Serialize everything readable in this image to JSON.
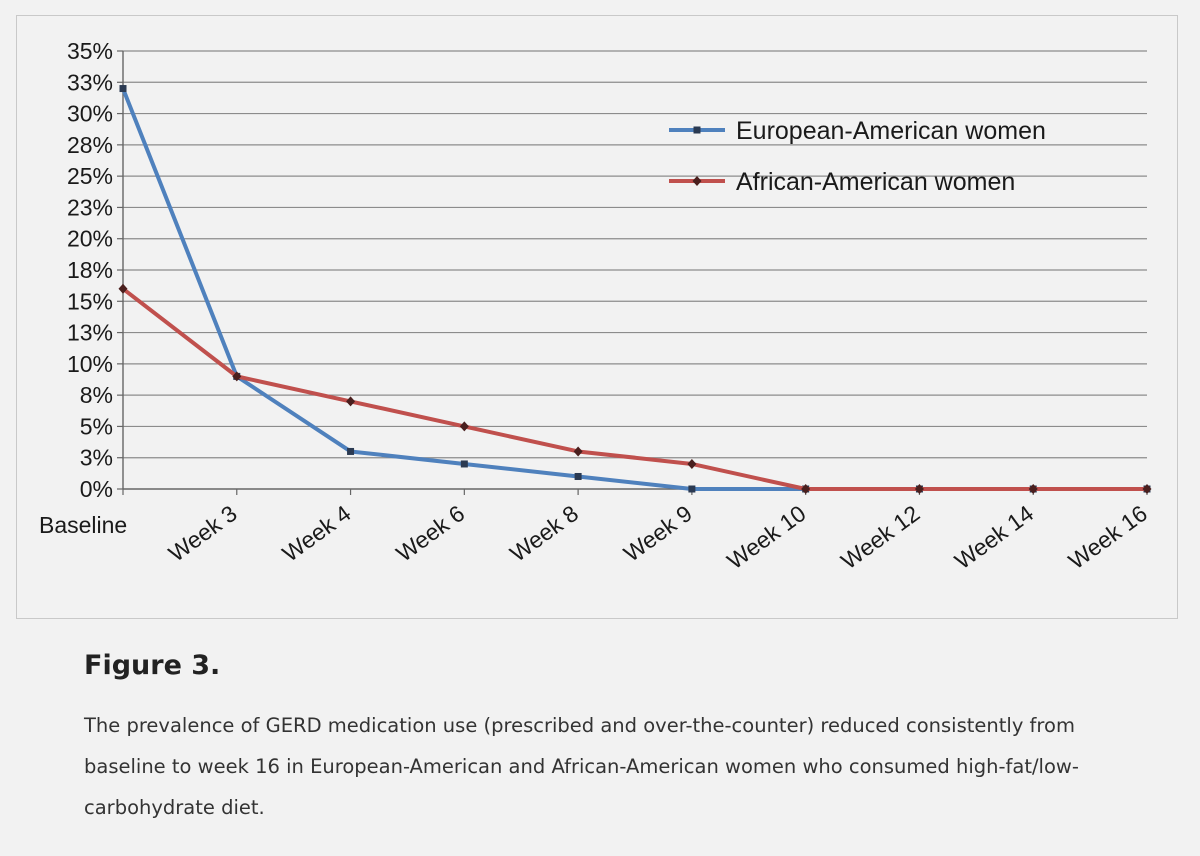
{
  "figure": {
    "label": "Figure 3.",
    "caption": "The prevalence of GERD medication use (prescribed and over-the-counter) reduced consistently from baseline to week 16 in European-American and African-American women who consumed high-fat/low-carbohydrate diet."
  },
  "chart_data": {
    "type": "line",
    "categories": [
      "Baseline",
      "Week 3",
      "Week 4",
      "Week 6",
      "Week 8",
      "Week 9",
      "Week 10",
      "Week 12",
      "Week 14",
      "Week 16"
    ],
    "y_tick_labels": [
      "0%",
      "3%",
      "5%",
      "8%",
      "10%",
      "13%",
      "15%",
      "18%",
      "20%",
      "23%",
      "25%",
      "28%",
      "30%",
      "33%",
      "35%"
    ],
    "ylim": [
      0,
      35
    ],
    "grid": true,
    "legend_position": "top-right",
    "series": [
      {
        "name": "European-American women",
        "color": "#4f81bd",
        "marker": "square",
        "values": [
          32,
          9,
          3,
          2,
          1,
          0,
          0,
          0,
          0,
          0
        ]
      },
      {
        "name": "African-American women",
        "color": "#c0504d",
        "marker": "diamond",
        "values": [
          16,
          9,
          7,
          5,
          3,
          2,
          0,
          0,
          0,
          0
        ]
      }
    ]
  }
}
